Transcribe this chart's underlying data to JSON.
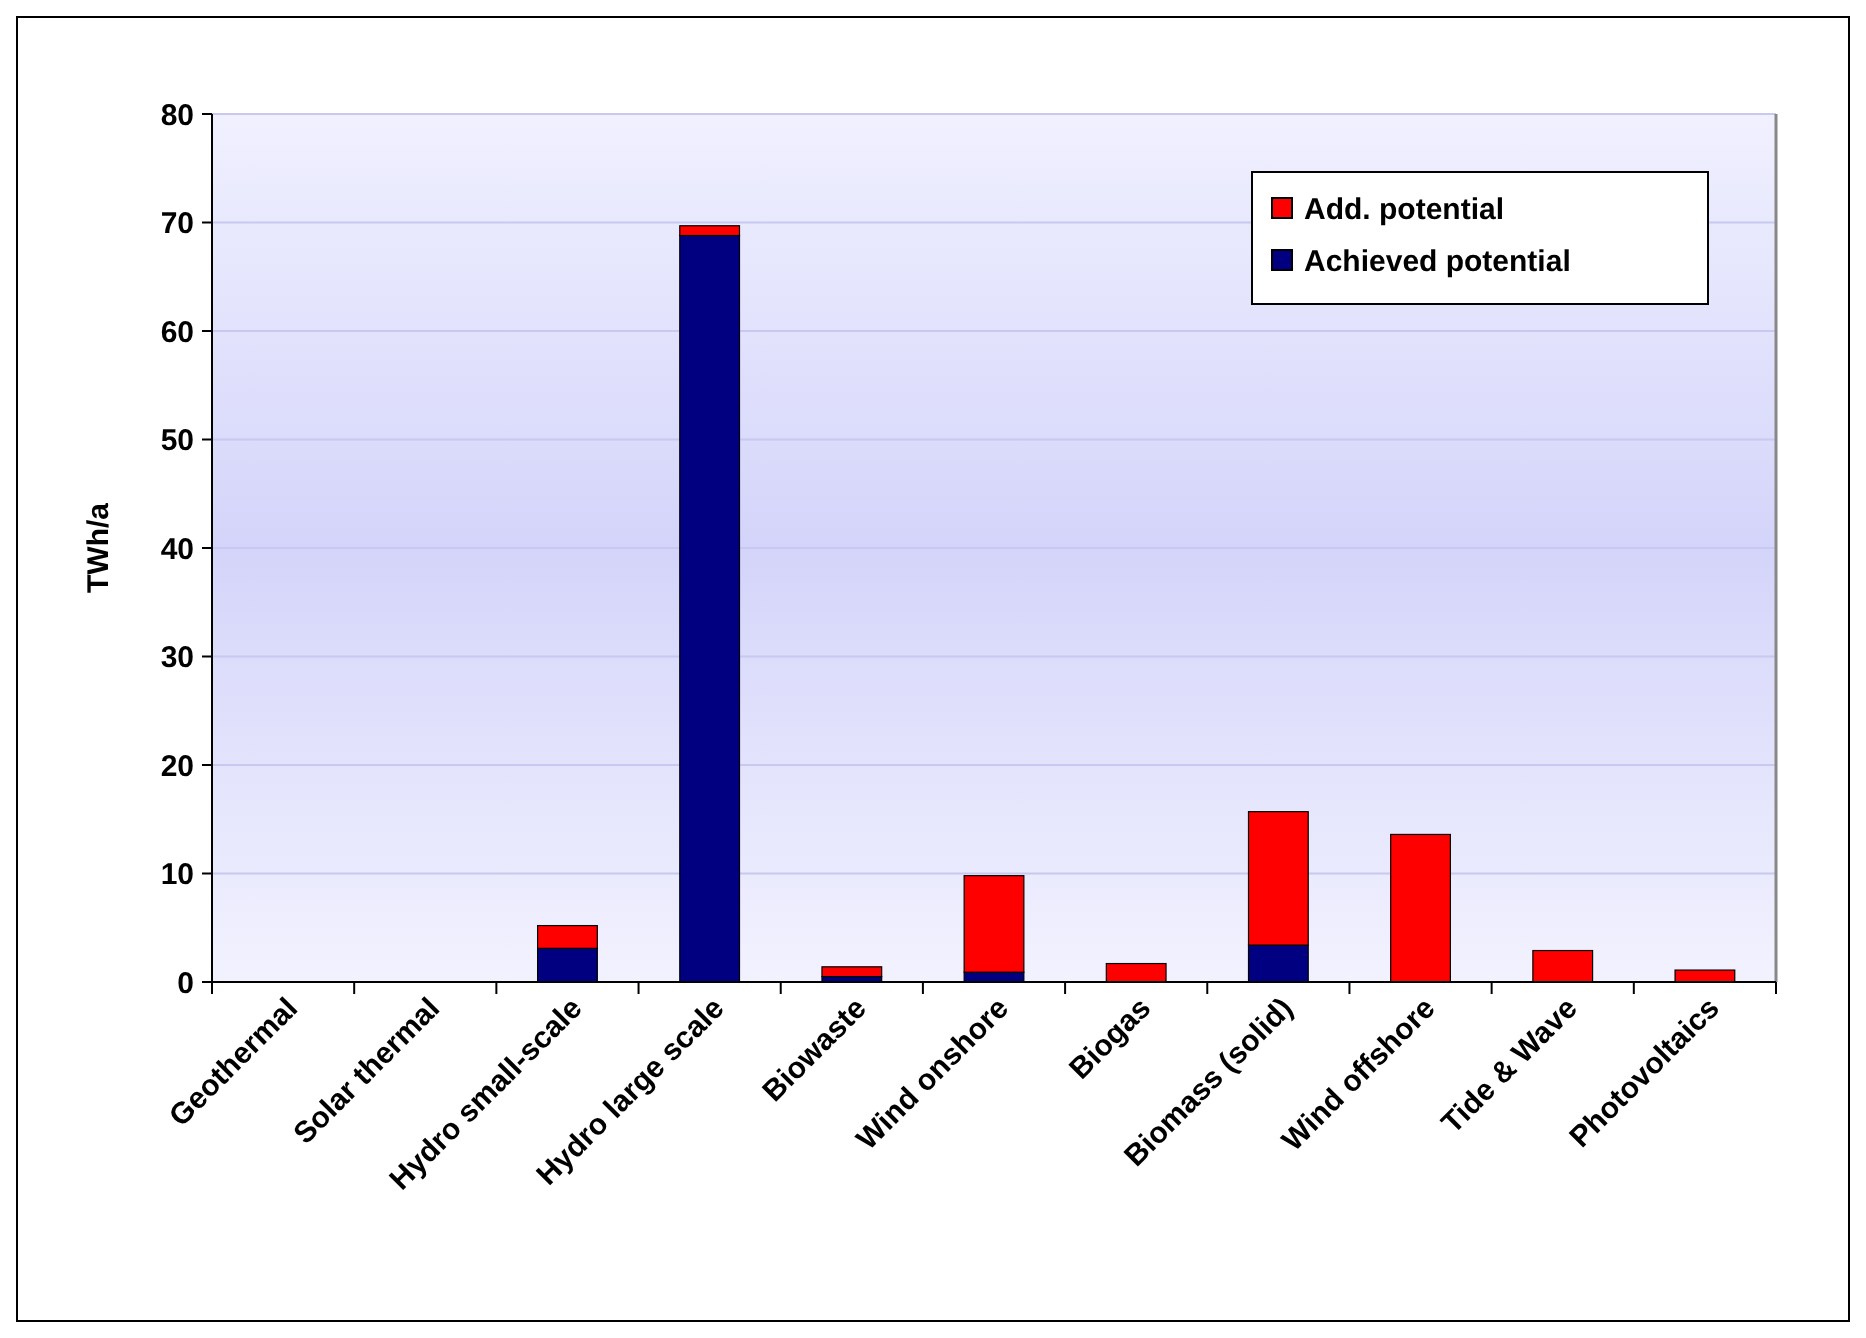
{
  "chart_data": {
    "type": "bar",
    "stacked": true,
    "ylabel": "TWh/a",
    "categories": [
      "Geothermal",
      "Solar thermal",
      "Hydro small-scale",
      "Hydro large scale",
      "Biowaste",
      "Wind onshore",
      "Biogas",
      "Biomass (solid)",
      "Wind offshore",
      "Tide & Wave",
      "Photovoltaics"
    ],
    "series": [
      {
        "name": "Achieved potential",
        "color": "#000080",
        "values": [
          0,
          0,
          3.1,
          68.8,
          0.5,
          0.9,
          0,
          3.4,
          0,
          0,
          0
        ]
      },
      {
        "name": "Add. potential",
        "color": "#ff0000",
        "values": [
          0,
          0,
          2.1,
          0.9,
          0.9,
          8.9,
          1.7,
          12.3,
          13.6,
          2.9,
          1.1
        ]
      }
    ],
    "ylim": [
      0,
      80
    ],
    "yticks": [
      0,
      10,
      20,
      30,
      40,
      50,
      60,
      70,
      80
    ],
    "grid": "y",
    "legend": "top right"
  }
}
